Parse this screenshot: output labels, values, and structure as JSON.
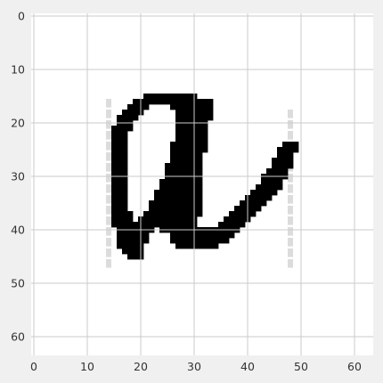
{
  "chart_data": {
    "type": "heatmap",
    "title": "",
    "xlabel": "",
    "ylabel": "",
    "xlim": [
      -0.5,
      63.5
    ],
    "ylim": [
      63.5,
      -0.5
    ],
    "grid": true,
    "colormap": "gray_r",
    "x_ticks": [
      0,
      10,
      20,
      30,
      40,
      50,
      60
    ],
    "y_ticks": [
      0,
      10,
      20,
      30,
      40,
      50,
      60
    ],
    "x_tick_labels": [
      "0",
      "10",
      "20",
      "30",
      "40",
      "50",
      "60"
    ],
    "y_tick_labels": [
      "0",
      "10",
      "20",
      "30",
      "40",
      "50",
      "60"
    ],
    "image_size": [
      64,
      64
    ],
    "pixels": [
      {
        "row": 15,
        "runs": [
          [
            21,
            30,
            1.0
          ]
        ]
      },
      {
        "row": 16,
        "runs": [
          [
            19,
            23,
            1.0
          ],
          [
            24,
            28,
            1.0
          ],
          [
            29,
            33,
            1.0
          ]
        ]
      },
      {
        "row": 17,
        "runs": [
          [
            18,
            21,
            1.0
          ],
          [
            26,
            33,
            1.0
          ]
        ]
      },
      {
        "row": 18,
        "runs": [
          [
            17,
            20,
            1.0
          ],
          [
            27,
            33,
            1.0
          ]
        ]
      },
      {
        "row": 19,
        "runs": [
          [
            16,
            19,
            1.0
          ],
          [
            27,
            33,
            1.0
          ]
        ]
      },
      {
        "row": 20,
        "runs": [
          [
            16,
            18,
            1.0
          ],
          [
            27,
            32,
            1.0
          ]
        ]
      },
      {
        "row": 21,
        "runs": [
          [
            15,
            18,
            1.0
          ],
          [
            27,
            32,
            1.0
          ]
        ]
      },
      {
        "row": 22,
        "runs": [
          [
            15,
            17,
            1.0
          ],
          [
            27,
            32,
            1.0
          ]
        ]
      },
      {
        "row": 23,
        "runs": [
          [
            15,
            17,
            1.0
          ],
          [
            27,
            32,
            1.0
          ]
        ]
      },
      {
        "row": 24,
        "runs": [
          [
            15,
            17,
            1.0
          ],
          [
            26,
            32,
            1.0
          ],
          [
            47,
            49,
            1.0
          ]
        ]
      },
      {
        "row": 25,
        "runs": [
          [
            15,
            17,
            1.0
          ],
          [
            26,
            32,
            1.0
          ],
          [
            46,
            49,
            1.0
          ]
        ]
      },
      {
        "row": 26,
        "runs": [
          [
            15,
            17,
            1.0
          ],
          [
            26,
            31,
            1.0
          ],
          [
            46,
            48,
            1.0
          ]
        ]
      },
      {
        "row": 27,
        "runs": [
          [
            15,
            17,
            1.0
          ],
          [
            26,
            31,
            1.0
          ],
          [
            45,
            48,
            1.0
          ]
        ]
      },
      {
        "row": 28,
        "runs": [
          [
            15,
            17,
            1.0
          ],
          [
            25,
            31,
            1.0
          ],
          [
            45,
            48,
            1.0
          ]
        ]
      },
      {
        "row": 29,
        "runs": [
          [
            15,
            17,
            1.0
          ],
          [
            25,
            31,
            1.0
          ],
          [
            44,
            47,
            1.0
          ]
        ]
      },
      {
        "row": 30,
        "runs": [
          [
            15,
            17,
            1.0
          ],
          [
            25,
            31,
            1.0
          ],
          [
            43,
            47,
            1.0
          ]
        ]
      },
      {
        "row": 31,
        "runs": [
          [
            15,
            17,
            1.0
          ],
          [
            24,
            31,
            1.0
          ],
          [
            43,
            46,
            1.0
          ]
        ]
      },
      {
        "row": 32,
        "runs": [
          [
            15,
            17,
            1.0
          ],
          [
            24,
            31,
            1.0
          ],
          [
            42,
            46,
            1.0
          ]
        ]
      },
      {
        "row": 33,
        "runs": [
          [
            15,
            17,
            1.0
          ],
          [
            23,
            31,
            1.0
          ],
          [
            41,
            45,
            1.0
          ]
        ]
      },
      {
        "row": 34,
        "runs": [
          [
            15,
            17,
            1.0
          ],
          [
            23,
            31,
            1.0
          ],
          [
            40,
            44,
            1.0
          ]
        ]
      },
      {
        "row": 35,
        "runs": [
          [
            15,
            17,
            1.0
          ],
          [
            22,
            31,
            1.0
          ],
          [
            39,
            43,
            1.0
          ]
        ]
      },
      {
        "row": 36,
        "runs": [
          [
            15,
            17,
            1.0
          ],
          [
            22,
            31,
            1.0
          ],
          [
            38,
            42,
            1.0
          ]
        ]
      },
      {
        "row": 37,
        "runs": [
          [
            15,
            18,
            1.0
          ],
          [
            21,
            31,
            1.0
          ],
          [
            37,
            41,
            1.0
          ]
        ]
      },
      {
        "row": 38,
        "runs": [
          [
            15,
            18,
            1.0
          ],
          [
            20,
            30,
            1.0
          ],
          [
            36,
            40,
            1.0
          ]
        ]
      },
      {
        "row": 39,
        "runs": [
          [
            15,
            30,
            1.0
          ],
          [
            35,
            39,
            1.0
          ]
        ]
      },
      {
        "row": 40,
        "runs": [
          [
            16,
            22,
            1.0
          ],
          [
            24,
            38,
            1.0
          ]
        ]
      },
      {
        "row": 41,
        "runs": [
          [
            16,
            21,
            1.0
          ],
          [
            26,
            37,
            1.0
          ]
        ]
      },
      {
        "row": 42,
        "runs": [
          [
            16,
            21,
            1.0
          ],
          [
            26,
            36,
            1.0
          ]
        ]
      },
      {
        "row": 43,
        "runs": [
          [
            16,
            20,
            1.0
          ],
          [
            27,
            34,
            1.0
          ]
        ]
      },
      {
        "row": 44,
        "runs": [
          [
            17,
            20,
            1.0
          ]
        ]
      },
      {
        "row": 45,
        "runs": [
          [
            18,
            20,
            1.0
          ]
        ]
      }
    ],
    "faint_columns": [
      {
        "col": 14,
        "rows": [
          15,
          46
        ],
        "value": 0.12
      },
      {
        "col": 48,
        "rows": [
          18,
          46
        ],
        "value": 0.12
      }
    ]
  }
}
